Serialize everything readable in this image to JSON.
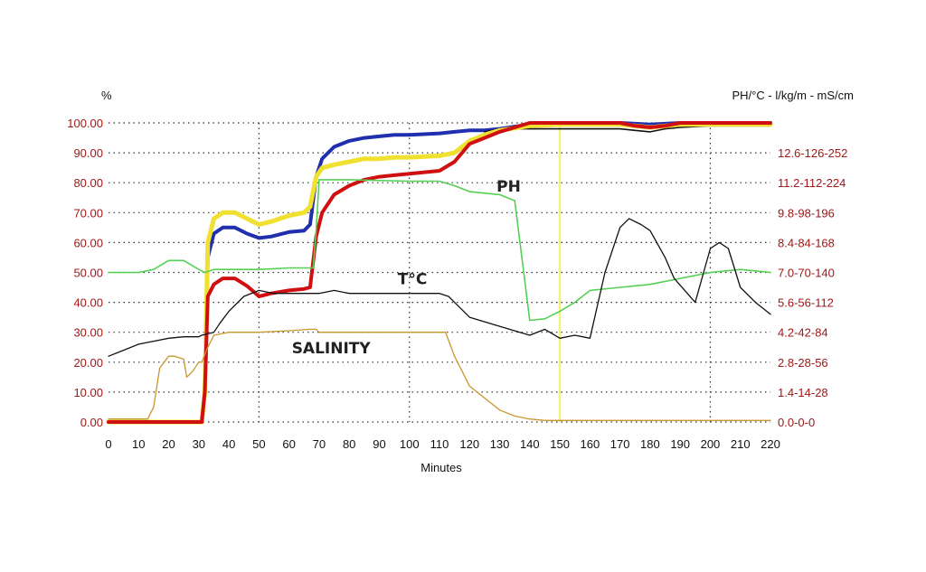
{
  "chart_data": {
    "type": "line",
    "xlabel": "Minutes",
    "ylabel_left": "%",
    "ylabel_right": "PH/°C - l/kg/m - mS/cm",
    "xlim": [
      0,
      220
    ],
    "ylim_left": [
      0,
      100
    ],
    "x_ticks": [
      "0",
      "10",
      "20",
      "30",
      "40",
      "50",
      "60",
      "70",
      "80",
      "90",
      "100",
      "110",
      "120",
      "130",
      "140",
      "150",
      "160",
      "170",
      "180",
      "190",
      "200",
      "210",
      "220"
    ],
    "left_ticks": [
      "0.00",
      "10.00",
      "20.00",
      "30.00",
      "40.00",
      "50.00",
      "60.00",
      "70.00",
      "80.00",
      "90.00",
      "100.00"
    ],
    "right_ticks": [
      "0.0-0-0",
      "1.4-14-28",
      "2.8-28-56",
      "4.2-42-84",
      "5.6-56-112",
      "7.0-70-140",
      "8.4-84-168",
      "9.8-98-196",
      "11.2-112-224",
      "12.6-126-252"
    ],
    "grid": true,
    "marker_line_x": 150,
    "annotations": [
      {
        "text": "PH",
        "x": 133,
        "y": 77
      },
      {
        "text": "T°C",
        "x": 101,
        "y": 46
      },
      {
        "text": "SALINITY",
        "x": 74,
        "y": 23
      }
    ],
    "series": [
      {
        "color": "#1f2fb0",
        "width": 4,
        "x": [
          0,
          31,
          32,
          33,
          35,
          38,
          42,
          46,
          50,
          54,
          60,
          65,
          67,
          69,
          71,
          75,
          80,
          85,
          90,
          95,
          100,
          110,
          115,
          120,
          125,
          130,
          140,
          150,
          160,
          170,
          180,
          190,
          200,
          210,
          220
        ],
        "y": [
          0,
          0,
          10,
          55,
          63,
          65,
          65,
          63,
          61.5,
          62,
          63.5,
          64,
          66,
          82,
          88,
          92,
          94,
          95,
          95.5,
          96,
          96,
          96.5,
          97,
          97.5,
          97.5,
          98,
          99.5,
          100,
          100,
          100,
          99.5,
          100,
          100,
          100,
          100
        ]
      },
      {
        "color": "#111111",
        "width": 1.6,
        "x": [
          125,
          130,
          140,
          150,
          160,
          170,
          175,
          180,
          185,
          190,
          200,
          210,
          220
        ],
        "y": [
          97,
          98,
          98,
          98,
          98,
          98,
          97.5,
          97,
          98,
          98.5,
          99,
          99,
          99
        ]
      },
      {
        "color": "#f0e030",
        "width": 5,
        "x": [
          0,
          31,
          32,
          33,
          35,
          38,
          42,
          46,
          50,
          54,
          60,
          65,
          67,
          69,
          71,
          75,
          80,
          85,
          90,
          95,
          100,
          110,
          115,
          120,
          125,
          130,
          140,
          150,
          160,
          170,
          180,
          190,
          200,
          210,
          220
        ],
        "y": [
          0,
          0,
          10,
          60,
          68,
          70,
          70,
          68,
          66,
          67,
          69,
          70,
          72,
          82,
          85,
          86,
          87,
          88,
          88,
          88.5,
          88.5,
          89,
          90,
          94,
          96,
          97.5,
          99,
          99.5,
          99.5,
          99.5,
          98.5,
          99.5,
          99.5,
          99.5,
          99.5
        ]
      },
      {
        "color": "#d01010",
        "width": 4,
        "x": [
          0,
          31,
          32,
          33,
          35,
          38,
          42,
          46,
          50,
          54,
          60,
          65,
          67,
          69,
          71,
          75,
          80,
          85,
          90,
          95,
          100,
          105,
          110,
          115,
          120,
          125,
          130,
          140,
          150,
          160,
          170,
          175,
          180,
          185,
          190,
          200,
          210,
          220
        ],
        "y": [
          0,
          0,
          10,
          42,
          46,
          48,
          48,
          45.5,
          42,
          43,
          44,
          44.5,
          45,
          62,
          70,
          76,
          79,
          81,
          82,
          82.5,
          83,
          83.5,
          84,
          87,
          93,
          95,
          97,
          100,
          100,
          100,
          100,
          99,
          98.5,
          99,
          100,
          100,
          100,
          100
        ]
      },
      {
        "color": "#55d055",
        "width": 1.6,
        "x": [
          0,
          10,
          15,
          20,
          25,
          30,
          32,
          35,
          40,
          50,
          60,
          65,
          68,
          69,
          70,
          80,
          100,
          110,
          115,
          120,
          130,
          135,
          140,
          145,
          150,
          155,
          160,
          170,
          180,
          190,
          200,
          210,
          215,
          220
        ],
        "y": [
          50,
          50,
          51,
          54,
          54,
          51,
          50,
          51,
          51,
          51,
          51.5,
          51.5,
          51.5,
          64,
          81,
          81,
          80.5,
          80.5,
          79,
          77,
          76,
          74,
          34,
          34.5,
          37,
          40,
          44,
          45,
          46,
          48,
          50,
          51,
          50.5,
          50
        ]
      },
      {
        "color": "#111111",
        "width": 1.3,
        "x": [
          0,
          5,
          10,
          15,
          20,
          25,
          30,
          31,
          35,
          37,
          40,
          45,
          50,
          55,
          60,
          70,
          75,
          80,
          100,
          110,
          113,
          120,
          130,
          140,
          145,
          150,
          155,
          160,
          165,
          170,
          173,
          177,
          180,
          185,
          188,
          195,
          200,
          203,
          206,
          210,
          215,
          220
        ],
        "y": [
          22,
          24,
          26,
          27,
          28,
          28.5,
          28.5,
          29,
          30,
          33,
          37,
          42,
          44,
          43,
          43,
          43,
          44,
          43,
          43,
          43,
          42,
          35,
          32,
          29,
          31,
          28,
          29,
          28,
          50,
          65,
          68,
          66,
          64,
          55,
          48,
          40,
          58,
          60,
          58,
          45,
          40,
          36
        ]
      },
      {
        "color": "#c8962c",
        "width": 1.3,
        "x": [
          0,
          13,
          15,
          17,
          20,
          22,
          25,
          26,
          28,
          30,
          31,
          33,
          35,
          40,
          50,
          60,
          67,
          69,
          70,
          80,
          100,
          112,
          115,
          120,
          125,
          130,
          135,
          140,
          145,
          150,
          220
        ],
        "y": [
          1,
          1,
          5,
          18,
          22,
          22,
          21,
          15,
          17,
          20,
          20,
          25,
          29,
          30,
          30,
          30.5,
          31,
          31,
          30,
          30,
          30,
          30,
          22,
          12,
          8,
          4,
          2,
          1,
          0.5,
          0.5,
          0.5
        ]
      }
    ]
  }
}
